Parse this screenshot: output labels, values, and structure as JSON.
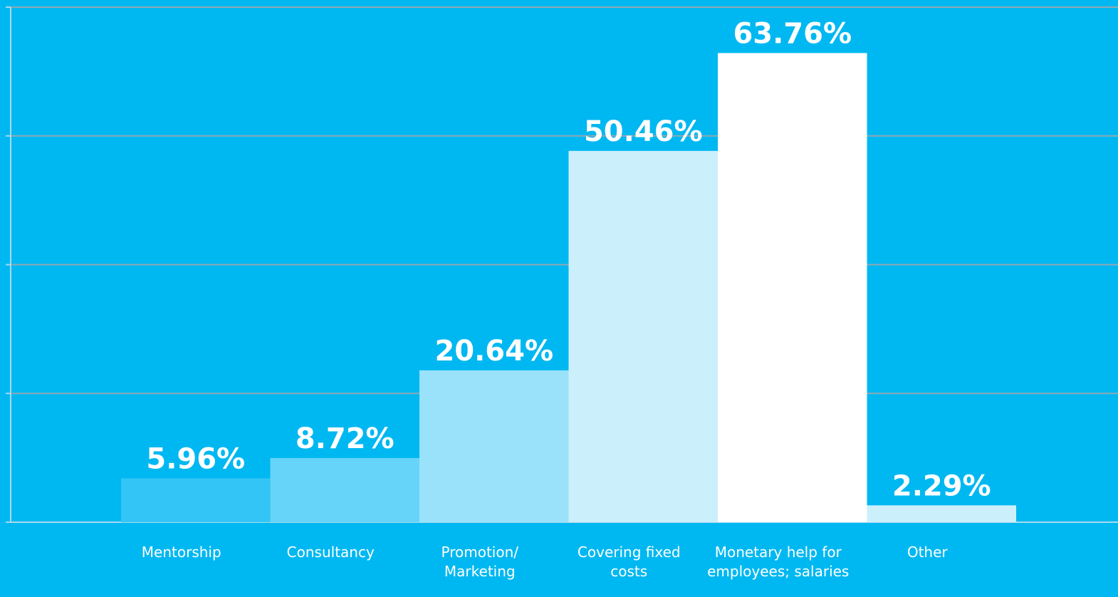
{
  "chart_data": {
    "type": "bar",
    "categories": [
      "Mentorship",
      "Consultancy",
      "Promotion/ Marketing",
      "Covering fixed costs",
      "Monetary help for employees; salaries",
      "Other"
    ],
    "values": [
      5.96,
      8.72,
      20.64,
      50.46,
      63.76,
      2.29
    ],
    "value_labels": [
      "5.96%",
      "8.72%",
      "20.64%",
      "50.46%",
      "63.76%",
      "2.29%"
    ],
    "colors": [
      "#33c5f5",
      "#66d4f8",
      "#99e2fa",
      "#ccf0fb",
      "#ffffff",
      "#ccf0fb"
    ],
    "ylim": [
      0,
      70
    ],
    "yticks": [
      0,
      17.5,
      35,
      52.5,
      70
    ],
    "grid": true
  }
}
